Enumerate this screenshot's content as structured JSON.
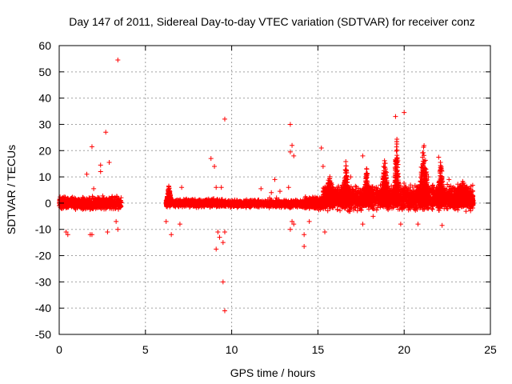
{
  "chart_data": {
    "type": "scatter",
    "title": "Day 147 of 2011, Sidereal Day-to-day VTEC variation (SDTVAR) for receiver conz",
    "xlabel": "GPS time / hours",
    "ylabel": "SDTVAR / TECUs",
    "xlim": [
      0,
      25
    ],
    "ylim": [
      -50,
      60
    ],
    "xticks": [
      0,
      5,
      10,
      15,
      20,
      25
    ],
    "yticks": [
      -50,
      -40,
      -30,
      -20,
      -10,
      0,
      10,
      20,
      30,
      40,
      50,
      60
    ],
    "grid": true,
    "marker": "+",
    "color": "#ff0000",
    "coverage_gap_hours": [
      3.6,
      6.2
    ],
    "dense_band": [
      {
        "x": [
          0.0,
          3.6
        ],
        "ymin": -3,
        "ymax": 3
      },
      {
        "x": [
          6.2,
          9.5
        ],
        "ymin": -2,
        "ymax": 2
      },
      {
        "x": [
          9.5,
          14.2
        ],
        "ymin": -2,
        "ymax": 1.5
      },
      {
        "x": [
          14.2,
          15.3
        ],
        "ymin": -3,
        "ymax": 3
      },
      {
        "x": [
          15.3,
          24.0
        ],
        "ymin": -4,
        "ymax": 8
      }
    ],
    "spike_ridges": [
      {
        "x": [
          6.2,
          6.5
        ],
        "peak": 8
      },
      {
        "x": [
          15.3,
          16.0
        ],
        "peak": 12
      },
      {
        "x": [
          16.4,
          16.8
        ],
        "peak": 18
      },
      {
        "x": [
          17.6,
          18.0
        ],
        "peak": 15
      },
      {
        "x": [
          18.6,
          19.1
        ],
        "peak": 19
      },
      {
        "x": [
          19.4,
          19.7
        ],
        "peak": 31
      },
      {
        "x": [
          20.8,
          21.4
        ],
        "peak": 25
      },
      {
        "x": [
          21.9,
          22.3
        ],
        "peak": 18
      },
      {
        "x": [
          22.6,
          24.0
        ],
        "peak": 9
      }
    ],
    "outliers": [
      {
        "x": 3.4,
        "y": 54.5
      },
      {
        "x": 2.7,
        "y": 27
      },
      {
        "x": 1.9,
        "y": 21.5
      },
      {
        "x": 2.9,
        "y": 15.5
      },
      {
        "x": 2.4,
        "y": 14.5
      },
      {
        "x": 1.6,
        "y": 11
      },
      {
        "x": 2.4,
        "y": 12
      },
      {
        "x": 2.0,
        "y": 5.5
      },
      {
        "x": 0.4,
        "y": -11
      },
      {
        "x": 0.5,
        "y": -12
      },
      {
        "x": 1.8,
        "y": -12
      },
      {
        "x": 1.9,
        "y": -12
      },
      {
        "x": 2.8,
        "y": -11
      },
      {
        "x": 3.3,
        "y": -7
      },
      {
        "x": 3.4,
        "y": -10
      },
      {
        "x": 6.2,
        "y": -7
      },
      {
        "x": 6.5,
        "y": -12
      },
      {
        "x": 7.1,
        "y": 6
      },
      {
        "x": 7.0,
        "y": -8
      },
      {
        "x": 8.8,
        "y": 17
      },
      {
        "x": 9.0,
        "y": 14
      },
      {
        "x": 9.6,
        "y": 32
      },
      {
        "x": 9.1,
        "y": 6
      },
      {
        "x": 9.4,
        "y": 6
      },
      {
        "x": 9.2,
        "y": -11
      },
      {
        "x": 9.1,
        "y": -17.5
      },
      {
        "x": 9.3,
        "y": -13
      },
      {
        "x": 9.5,
        "y": -15
      },
      {
        "x": 9.6,
        "y": -11
      },
      {
        "x": 9.5,
        "y": -30
      },
      {
        "x": 9.6,
        "y": -41
      },
      {
        "x": 11.7,
        "y": 5.5
      },
      {
        "x": 12.2,
        "y": 2
      },
      {
        "x": 12.3,
        "y": 4
      },
      {
        "x": 12.5,
        "y": 9
      },
      {
        "x": 12.8,
        "y": 4.5
      },
      {
        "x": 12.6,
        "y": 2
      },
      {
        "x": 13.4,
        "y": 30
      },
      {
        "x": 13.5,
        "y": 22
      },
      {
        "x": 13.4,
        "y": 19.5
      },
      {
        "x": 13.6,
        "y": 18
      },
      {
        "x": 13.3,
        "y": 6
      },
      {
        "x": 13.5,
        "y": -7
      },
      {
        "x": 13.4,
        "y": -10
      },
      {
        "x": 13.6,
        "y": -8
      },
      {
        "x": 14.2,
        "y": -12
      },
      {
        "x": 14.2,
        "y": -16.5
      },
      {
        "x": 14.5,
        "y": -7
      },
      {
        "x": 15.2,
        "y": 21
      },
      {
        "x": 15.3,
        "y": 14
      },
      {
        "x": 15.4,
        "y": -11
      },
      {
        "x": 17.6,
        "y": 18
      },
      {
        "x": 16.9,
        "y": 10
      },
      {
        "x": 17.3,
        "y": 4
      },
      {
        "x": 17.6,
        "y": -8
      },
      {
        "x": 18.2,
        "y": -5
      },
      {
        "x": 19.5,
        "y": 33
      },
      {
        "x": 20.0,
        "y": 34.5
      },
      {
        "x": 19.8,
        "y": -8
      },
      {
        "x": 20.8,
        "y": -8
      },
      {
        "x": 21.6,
        "y": 6
      },
      {
        "x": 22.0,
        "y": 17.5
      },
      {
        "x": 21.4,
        "y": 10
      },
      {
        "x": 22.2,
        "y": -8.5
      },
      {
        "x": 22.6,
        "y": 9
      }
    ]
  }
}
